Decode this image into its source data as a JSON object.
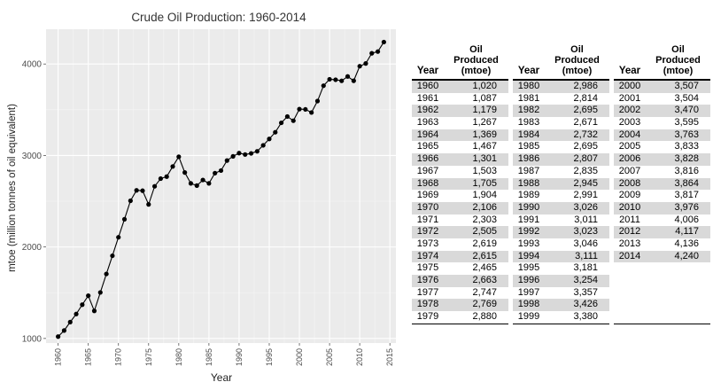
{
  "chart_data": {
    "type": "line",
    "title": "Crude Oil Production: 1960-2014",
    "xlabel": "Year",
    "ylabel": "mtoe (million tonnes of oil equivalent)",
    "xlim": [
      1958,
      2016
    ],
    "ylim": [
      950,
      4380
    ],
    "x_ticks": [
      "1960",
      "1965",
      "1970",
      "1975",
      "1980",
      "1985",
      "1990",
      "1995",
      "2000",
      "2005",
      "2010",
      "2015"
    ],
    "y_ticks": [
      "1000",
      "2000",
      "3000",
      "4000"
    ],
    "grid": true,
    "series": [
      {
        "x": [
          1960,
          1961,
          1962,
          1963,
          1964,
          1965,
          1966,
          1967,
          1968,
          1969,
          1970,
          1971,
          1972,
          1973,
          1974,
          1975,
          1976,
          1977,
          1978,
          1979,
          1980,
          1981,
          1982,
          1983,
          1984,
          1985,
          1986,
          1987,
          1988,
          1989,
          1990,
          1991,
          1992,
          1993,
          1994,
          1995,
          1996,
          1997,
          1998,
          1999,
          2000,
          2001,
          2002,
          2003,
          2004,
          2005,
          2006,
          2007,
          2008,
          2009,
          2010,
          2011,
          2012,
          2013,
          2014
        ],
        "values": [
          1020,
          1087,
          1179,
          1267,
          1369,
          1467,
          1301,
          1503,
          1705,
          1904,
          2106,
          2303,
          2505,
          2619,
          2615,
          2465,
          2663,
          2747,
          2769,
          2880,
          2986,
          2814,
          2695,
          2671,
          2732,
          2695,
          2807,
          2835,
          2945,
          2991,
          3026,
          3011,
          3023,
          3046,
          3111,
          3181,
          3254,
          3357,
          3426,
          3380,
          3507,
          3504,
          3470,
          3595,
          3763,
          3833,
          3828,
          3816,
          3864,
          3817,
          3976,
          4006,
          4117,
          4136,
          4240
        ]
      }
    ]
  },
  "table": {
    "header_year": "Year",
    "header_produced": [
      "Oil",
      "Produced",
      "(mtoe)"
    ],
    "columns": [
      [
        [
          "1960",
          "1,020"
        ],
        [
          "1961",
          "1,087"
        ],
        [
          "1962",
          "1,179"
        ],
        [
          "1963",
          "1,267"
        ],
        [
          "1964",
          "1,369"
        ],
        [
          "1965",
          "1,467"
        ],
        [
          "1966",
          "1,301"
        ],
        [
          "1967",
          "1,503"
        ],
        [
          "1968",
          "1,705"
        ],
        [
          "1969",
          "1,904"
        ],
        [
          "1970",
          "2,106"
        ],
        [
          "1971",
          "2,303"
        ],
        [
          "1972",
          "2,505"
        ],
        [
          "1973",
          "2,619"
        ],
        [
          "1974",
          "2,615"
        ],
        [
          "1975",
          "2,465"
        ],
        [
          "1976",
          "2,663"
        ],
        [
          "1977",
          "2,747"
        ],
        [
          "1978",
          "2,769"
        ],
        [
          "1979",
          "2,880"
        ]
      ],
      [
        [
          "1980",
          "2,986"
        ],
        [
          "1981",
          "2,814"
        ],
        [
          "1982",
          "2,695"
        ],
        [
          "1983",
          "2,671"
        ],
        [
          "1984",
          "2,732"
        ],
        [
          "1985",
          "2,695"
        ],
        [
          "1986",
          "2,807"
        ],
        [
          "1987",
          "2,835"
        ],
        [
          "1988",
          "2,945"
        ],
        [
          "1989",
          "2,991"
        ],
        [
          "1990",
          "3,026"
        ],
        [
          "1991",
          "3,011"
        ],
        [
          "1992",
          "3,023"
        ],
        [
          "1993",
          "3,046"
        ],
        [
          "1994",
          "3,111"
        ],
        [
          "1995",
          "3,181"
        ],
        [
          "1996",
          "3,254"
        ],
        [
          "1997",
          "3,357"
        ],
        [
          "1998",
          "3,426"
        ],
        [
          "1999",
          "3,380"
        ]
      ],
      [
        [
          "2000",
          "3,507"
        ],
        [
          "2001",
          "3,504"
        ],
        [
          "2002",
          "3,470"
        ],
        [
          "2003",
          "3,595"
        ],
        [
          "2004",
          "3,763"
        ],
        [
          "2005",
          "3,833"
        ],
        [
          "2006",
          "3,828"
        ],
        [
          "2007",
          "3,816"
        ],
        [
          "2008",
          "3,864"
        ],
        [
          "2009",
          "3,817"
        ],
        [
          "2010",
          "3,976"
        ],
        [
          "2011",
          "4,006"
        ],
        [
          "2012",
          "4,117"
        ],
        [
          "2013",
          "4,136"
        ],
        [
          "2014",
          "4,240"
        ],
        [
          "",
          ""
        ],
        [
          "",
          ""
        ],
        [
          "",
          ""
        ],
        [
          "",
          ""
        ],
        [
          "",
          ""
        ]
      ]
    ]
  }
}
